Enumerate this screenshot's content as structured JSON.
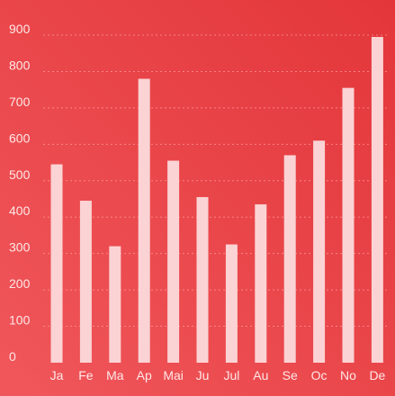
{
  "colors": {
    "background_start": "#f0575b",
    "background_end": "#e3363a",
    "bar": "#fbd3d4",
    "text": "#ffe7e7",
    "grid": "#ff9fa2"
  },
  "chart_data": {
    "type": "bar",
    "title": "",
    "xlabel": "",
    "ylabel": "",
    "categories": [
      "Ja",
      "Fe",
      "Ma",
      "Ap",
      "Mai",
      "Ju",
      "Jul",
      "Au",
      "Se",
      "Oc",
      "No",
      "De"
    ],
    "values": [
      545,
      445,
      320,
      780,
      555,
      455,
      325,
      435,
      570,
      610,
      755,
      895
    ],
    "ylim": [
      0,
      900
    ],
    "yticks": [
      0,
      100,
      200,
      300,
      400,
      500,
      600,
      700,
      800,
      900
    ],
    "grid": true,
    "legend": "none"
  }
}
